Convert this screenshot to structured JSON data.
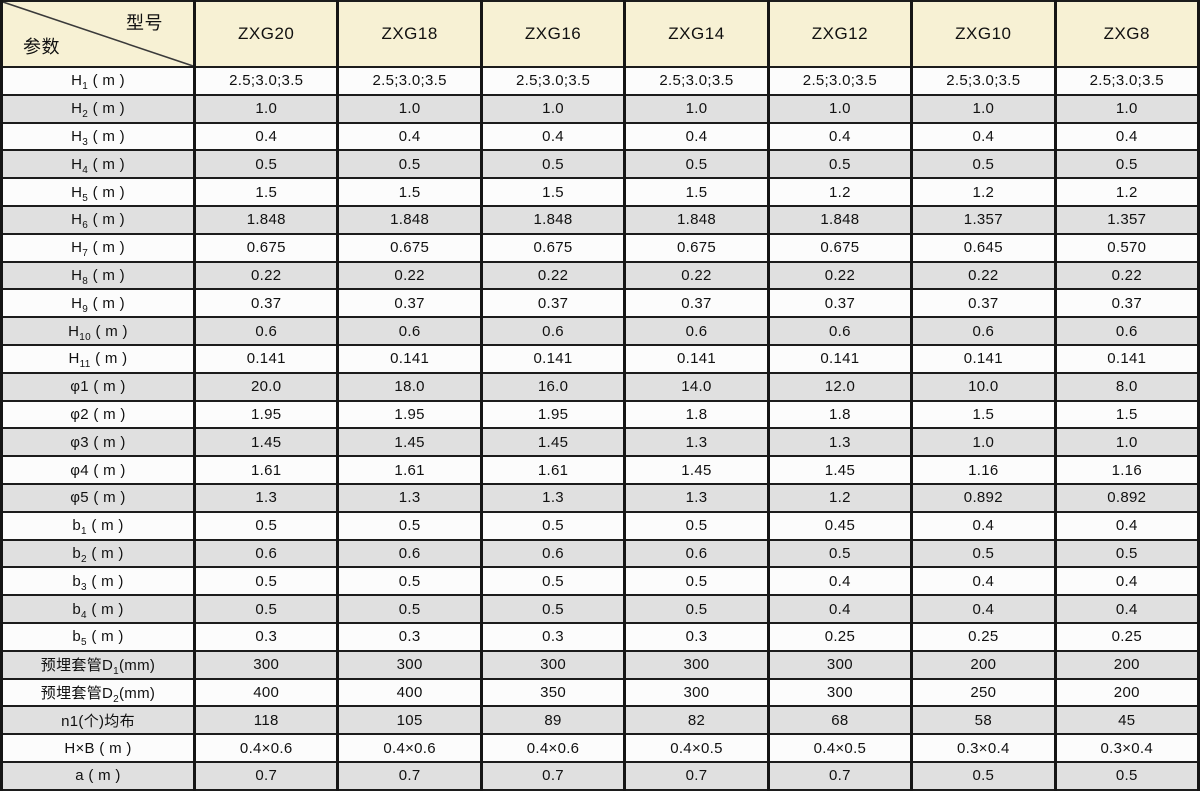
{
  "header": {
    "corner": {
      "top_right_label": "型号",
      "bottom_left_label": "参数"
    },
    "models": [
      "ZXG20",
      "ZXG18",
      "ZXG16",
      "ZXG14",
      "ZXG12",
      "ZXG10",
      "ZXG8"
    ]
  },
  "colors": {
    "header_bg": "#f7f1d4",
    "row_bg": "#fcfcfc",
    "row_alt_bg": "#e0e0e0",
    "border": "#1c1c1c"
  },
  "chart_data": {
    "type": "table",
    "columns": [
      "参数/型号",
      "ZXG20",
      "ZXG18",
      "ZXG16",
      "ZXG14",
      "ZXG12",
      "ZXG10",
      "ZXG8"
    ],
    "rows_note": "see rows[] below"
  },
  "rows": [
    {
      "param": {
        "pre": "H",
        "sub": "1",
        "post": " ( m )"
      },
      "values": [
        "2.5;3.0;3.5",
        "2.5;3.0;3.5",
        "2.5;3.0;3.5",
        "2.5;3.0;3.5",
        "2.5;3.0;3.5",
        "2.5;3.0;3.5",
        "2.5;3.0;3.5"
      ]
    },
    {
      "param": {
        "pre": "H",
        "sub": "2",
        "post": " ( m )"
      },
      "values": [
        "1.0",
        "1.0",
        "1.0",
        "1.0",
        "1.0",
        "1.0",
        "1.0"
      ]
    },
    {
      "param": {
        "pre": "H",
        "sub": "3",
        "post": " ( m )"
      },
      "values": [
        "0.4",
        "0.4",
        "0.4",
        "0.4",
        "0.4",
        "0.4",
        "0.4"
      ]
    },
    {
      "param": {
        "pre": "H",
        "sub": "4",
        "post": " ( m )"
      },
      "values": [
        "0.5",
        "0.5",
        "0.5",
        "0.5",
        "0.5",
        "0.5",
        "0.5"
      ]
    },
    {
      "param": {
        "pre": "H",
        "sub": "5",
        "post": " ( m )"
      },
      "values": [
        "1.5",
        "1.5",
        "1.5",
        "1.5",
        "1.2",
        "1.2",
        "1.2"
      ]
    },
    {
      "param": {
        "pre": "H",
        "sub": "6",
        "post": " ( m )"
      },
      "values": [
        "1.848",
        "1.848",
        "1.848",
        "1.848",
        "1.848",
        "1.357",
        "1.357"
      ]
    },
    {
      "param": {
        "pre": "H",
        "sub": "7",
        "post": " ( m )"
      },
      "values": [
        "0.675",
        "0.675",
        "0.675",
        "0.675",
        "0.675",
        "0.645",
        "0.570"
      ]
    },
    {
      "param": {
        "pre": "H",
        "sub": "8",
        "post": " ( m )"
      },
      "values": [
        "0.22",
        "0.22",
        "0.22",
        "0.22",
        "0.22",
        "0.22",
        "0.22"
      ]
    },
    {
      "param": {
        "pre": "H",
        "sub": "9",
        "post": " ( m )"
      },
      "values": [
        "0.37",
        "0.37",
        "0.37",
        "0.37",
        "0.37",
        "0.37",
        "0.37"
      ]
    },
    {
      "param": {
        "pre": "H",
        "sub": "10",
        "post": " ( m )"
      },
      "values": [
        "0.6",
        "0.6",
        "0.6",
        "0.6",
        "0.6",
        "0.6",
        "0.6"
      ]
    },
    {
      "param": {
        "pre": "H",
        "sub": "11",
        "post": " ( m )"
      },
      "values": [
        "0.141",
        "0.141",
        "0.141",
        "0.141",
        "0.141",
        "0.141",
        "0.141"
      ]
    },
    {
      "param": {
        "pre": "φ1",
        "sub": "",
        "post": " ( m )"
      },
      "values": [
        "20.0",
        "18.0",
        "16.0",
        "14.0",
        "12.0",
        "10.0",
        "8.0"
      ]
    },
    {
      "param": {
        "pre": "φ2",
        "sub": "",
        "post": " ( m )"
      },
      "values": [
        "1.95",
        "1.95",
        "1.95",
        "1.8",
        "1.8",
        "1.5",
        "1.5"
      ]
    },
    {
      "param": {
        "pre": "φ3",
        "sub": "",
        "post": " ( m )"
      },
      "values": [
        "1.45",
        "1.45",
        "1.45",
        "1.3",
        "1.3",
        "1.0",
        "1.0"
      ]
    },
    {
      "param": {
        "pre": "φ4",
        "sub": "",
        "post": " ( m )"
      },
      "values": [
        "1.61",
        "1.61",
        "1.61",
        "1.45",
        "1.45",
        "1.16",
        "1.16"
      ]
    },
    {
      "param": {
        "pre": "φ5",
        "sub": "",
        "post": " ( m )"
      },
      "values": [
        "1.3",
        "1.3",
        "1.3",
        "1.3",
        "1.2",
        "0.892",
        "0.892"
      ]
    },
    {
      "param": {
        "pre": "b",
        "sub": "1",
        "post": " ( m )"
      },
      "values": [
        "0.5",
        "0.5",
        "0.5",
        "0.5",
        "0.45",
        "0.4",
        "0.4"
      ]
    },
    {
      "param": {
        "pre": "b",
        "sub": "2",
        "post": " ( m )"
      },
      "values": [
        "0.6",
        "0.6",
        "0.6",
        "0.6",
        "0.5",
        "0.5",
        "0.5"
      ]
    },
    {
      "param": {
        "pre": "b",
        "sub": "3",
        "post": " ( m )"
      },
      "values": [
        "0.5",
        "0.5",
        "0.5",
        "0.5",
        "0.4",
        "0.4",
        "0.4"
      ]
    },
    {
      "param": {
        "pre": "b",
        "sub": "4",
        "post": " ( m )"
      },
      "values": [
        "0.5",
        "0.5",
        "0.5",
        "0.5",
        "0.4",
        "0.4",
        "0.4"
      ]
    },
    {
      "param": {
        "pre": "b",
        "sub": "5",
        "post": " ( m )"
      },
      "values": [
        "0.3",
        "0.3",
        "0.3",
        "0.3",
        "0.25",
        "0.25",
        "0.25"
      ]
    },
    {
      "param": {
        "pre": "预埋套管D",
        "sub": "1",
        "post": "(mm)"
      },
      "values": [
        "300",
        "300",
        "300",
        "300",
        "300",
        "200",
        "200"
      ]
    },
    {
      "param": {
        "pre": "预埋套管D",
        "sub": "2",
        "post": "(mm)"
      },
      "values": [
        "400",
        "400",
        "350",
        "300",
        "300",
        "250",
        "200"
      ]
    },
    {
      "param": {
        "pre": "n1(个)均布",
        "sub": "",
        "post": ""
      },
      "values": [
        "118",
        "105",
        "89",
        "82",
        "68",
        "58",
        "45"
      ]
    },
    {
      "param": {
        "pre": "H×B",
        "sub": "",
        "post": " ( m )"
      },
      "values": [
        "0.4×0.6",
        "0.4×0.6",
        "0.4×0.6",
        "0.4×0.5",
        "0.4×0.5",
        "0.3×0.4",
        "0.3×0.4"
      ]
    },
    {
      "param": {
        "pre": "a",
        "sub": "",
        "post": " ( m )"
      },
      "values": [
        "0.7",
        "0.7",
        "0.7",
        "0.7",
        "0.7",
        "0.5",
        "0.5"
      ]
    }
  ]
}
